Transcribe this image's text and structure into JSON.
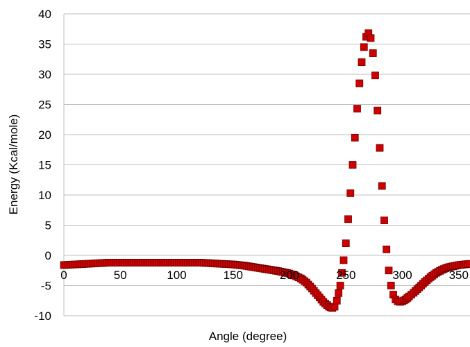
{
  "chart_data": {
    "type": "scatter",
    "title": "",
    "xlabel": "Angle (degree)",
    "ylabel": "Energy (Kcal/mole)",
    "xlim": [
      0,
      360
    ],
    "ylim": [
      -10,
      40
    ],
    "x_ticks": [
      0,
      50,
      100,
      150,
      200,
      250,
      300,
      350
    ],
    "y_ticks": [
      -10,
      -5,
      0,
      5,
      10,
      15,
      20,
      25,
      30,
      35,
      40
    ],
    "x_tick_labels": [
      "0",
      "50",
      "100",
      "150",
      "200",
      "250",
      "300",
      "350"
    ],
    "y_tick_labels": [
      "-10",
      "-5",
      "0",
      "5",
      "10",
      "15",
      "20",
      "25",
      "30",
      "35",
      "40"
    ],
    "grid": "horizontal",
    "legend": "none",
    "marker": "square",
    "colors": {
      "marker_fill": "#cc0000",
      "marker_edge": "#6b0000",
      "grid": "#bdbdbd"
    },
    "series": [
      {
        "x": [
          0,
          10,
          20,
          30,
          40,
          50,
          60,
          70,
          80,
          90,
          100,
          110,
          120,
          130,
          140,
          150,
          160,
          170,
          180,
          190,
          200,
          210,
          215,
          220,
          225,
          230,
          235,
          238,
          240,
          242,
          245,
          248,
          250,
          252,
          254,
          256,
          258,
          260,
          262,
          264,
          266,
          268,
          270,
          272,
          274,
          276,
          278,
          280,
          282,
          284,
          286,
          288,
          290,
          292,
          294,
          296,
          298,
          300,
          303,
          306,
          310,
          315,
          320,
          325,
          330,
          335,
          340,
          345,
          350,
          355,
          360
        ],
        "y": [
          -1.6,
          -1.5,
          -1.4,
          -1.3,
          -1.2,
          -1.2,
          -1.2,
          -1.2,
          -1.2,
          -1.2,
          -1.2,
          -1.2,
          -1.2,
          -1.3,
          -1.4,
          -1.5,
          -1.7,
          -2.0,
          -2.3,
          -2.6,
          -3.0,
          -3.8,
          -4.5,
          -5.5,
          -6.6,
          -7.7,
          -8.5,
          -8.7,
          -8.5,
          -7.5,
          -5.0,
          -0.8,
          2.0,
          6.0,
          10.3,
          15.0,
          19.5,
          24.3,
          28.5,
          32.0,
          34.5,
          36.2,
          36.8,
          36.0,
          33.5,
          29.8,
          24.0,
          17.8,
          11.5,
          5.8,
          1.0,
          -2.5,
          -5.0,
          -6.5,
          -7.3,
          -7.6,
          -7.7,
          -7.6,
          -7.3,
          -6.8,
          -6.2,
          -5.3,
          -4.4,
          -3.6,
          -2.9,
          -2.4,
          -2.0,
          -1.8,
          -1.6,
          -1.5,
          -1.4
        ]
      }
    ]
  }
}
